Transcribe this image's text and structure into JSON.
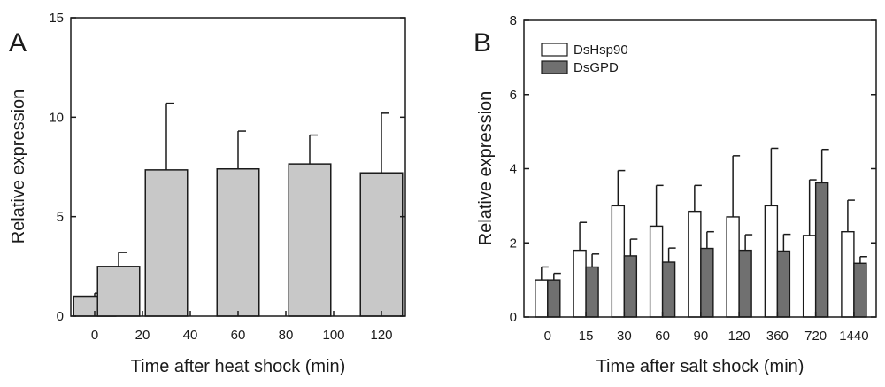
{
  "colors": {
    "bar_a": "#c8c8c8",
    "series_white": "#ffffff",
    "series_gray": "#707070",
    "stroke": "#1a1a1a"
  },
  "chart_data": [
    {
      "panel": "A",
      "type": "bar",
      "xlabel": "Time after heat shock (min)",
      "ylabel": "Relative expression",
      "xlim": [
        -10,
        130
      ],
      "ylim": [
        0,
        15
      ],
      "yticks": [
        0,
        5,
        10,
        15
      ],
      "xticks": [
        0,
        20,
        40,
        60,
        80,
        100,
        120
      ],
      "bar_width_data": 8,
      "bars": [
        {
          "x": 0,
          "value": 1.0,
          "error": 0.15
        },
        {
          "x": 10,
          "value": 2.5,
          "error": 0.7
        },
        {
          "x": 30,
          "value": 7.35,
          "error": 3.35
        },
        {
          "x": 60,
          "value": 7.4,
          "error": 1.9
        },
        {
          "x": 90,
          "value": 7.65,
          "error": 1.45
        },
        {
          "x": 120,
          "value": 7.2,
          "error": 3.0
        }
      ]
    },
    {
      "panel": "B",
      "type": "bar",
      "xlabel": "Time after salt shock (min)",
      "ylabel": "Relative expression",
      "ylim": [
        0,
        8
      ],
      "yticks": [
        0,
        2,
        4,
        6,
        8
      ],
      "categories": [
        "0",
        "15",
        "30",
        "60",
        "90",
        "120",
        "360",
        "720",
        "1440"
      ],
      "legend_position": "top-left",
      "series": [
        {
          "name": "DsHsp90",
          "values": [
            1.0,
            1.8,
            3.0,
            2.45,
            2.85,
            2.7,
            3.0,
            2.2,
            2.3
          ],
          "errors": [
            0.35,
            0.75,
            0.95,
            1.1,
            0.7,
            1.65,
            1.55,
            1.5,
            0.85
          ]
        },
        {
          "name": "DsGPD",
          "values": [
            1.0,
            1.35,
            1.65,
            1.48,
            1.85,
            1.8,
            1.78,
            3.62,
            1.45
          ],
          "errors": [
            0.18,
            0.35,
            0.45,
            0.38,
            0.45,
            0.42,
            0.45,
            0.9,
            0.18
          ]
        }
      ]
    }
  ]
}
